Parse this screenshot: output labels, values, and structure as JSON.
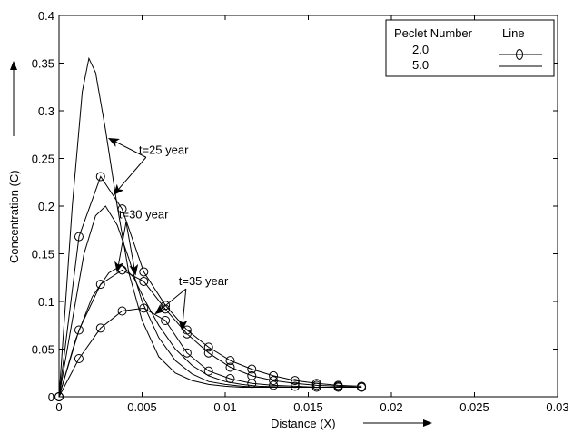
{
  "chart_data": {
    "type": "line",
    "title": "",
    "xlabel": "Distance (X)",
    "ylabel": "Concentration (C)",
    "xlim": [
      0,
      0.03
    ],
    "ylim": [
      0,
      0.4
    ],
    "x_ticks": [
      0,
      0.005,
      0.01,
      0.015,
      0.02,
      0.025,
      0.03
    ],
    "x_tick_labels": [
      "0",
      "0.005",
      "0.01",
      "0.015",
      "0.02",
      "0.025",
      "0.03"
    ],
    "y_ticks": [
      0,
      0.05,
      0.1,
      0.15,
      0.2,
      0.25,
      0.3,
      0.35,
      0.4
    ],
    "y_tick_labels": [
      "0",
      "0.05",
      "0.1",
      "0.15",
      "0.2",
      "0.25",
      "0.3",
      "0.35",
      "0.4"
    ],
    "grid": false,
    "legend": {
      "placement": "top-right",
      "header_left": "Peclet Number",
      "header_right": "Line",
      "entries": [
        {
          "label": "2.0",
          "marker": "circle"
        },
        {
          "label": "5.0",
          "marker": "none"
        }
      ]
    },
    "series": [
      {
        "peclet": "2.0",
        "marker": "circle",
        "x": [
          0,
          0.0012,
          0.0025,
          0.0038,
          0.0051,
          0.0064,
          0.0077,
          0.009,
          0.0103,
          0.0116,
          0.0129,
          0.0142,
          0.0155,
          0.0168,
          0.0182
        ],
        "y": [
          0,
          0.168,
          0.231,
          0.197,
          0.131,
          0.096,
          0.07,
          0.052,
          0.038,
          0.029,
          0.022,
          0.017,
          0.014,
          0.012,
          0.011
        ]
      },
      {
        "peclet": "2.0",
        "marker": "circle",
        "x": [
          0,
          0.0012,
          0.0025,
          0.0038,
          0.0051,
          0.0064,
          0.0077,
          0.009,
          0.0103,
          0.0116,
          0.0129,
          0.0142,
          0.0155,
          0.0168,
          0.0182
        ],
        "y": [
          0,
          0.07,
          0.118,
          0.133,
          0.121,
          0.092,
          0.066,
          0.046,
          0.031,
          0.022,
          0.017,
          0.014,
          0.012,
          0.011,
          0.01
        ]
      },
      {
        "peclet": "2.0",
        "marker": "circle",
        "x": [
          0,
          0.0012,
          0.0025,
          0.0038,
          0.0051,
          0.0064,
          0.0077,
          0.009,
          0.0103,
          0.0116,
          0.0129,
          0.0142,
          0.0155,
          0.0168,
          0.0182
        ],
        "y": [
          0,
          0.04,
          0.072,
          0.09,
          0.093,
          0.08,
          0.046,
          0.027,
          0.019,
          0.014,
          0.012,
          0.011,
          0.01,
          0.01,
          0.01
        ]
      },
      {
        "peclet": "5.0",
        "marker": "none",
        "x": [
          0,
          0.0008,
          0.0014,
          0.0018,
          0.0022,
          0.0028,
          0.0035,
          0.0042,
          0.005,
          0.006,
          0.007,
          0.008,
          0.009,
          0.01,
          0.011,
          0.012,
          0.014,
          0.016,
          0.0182
        ],
        "y": [
          0,
          0.2,
          0.32,
          0.355,
          0.34,
          0.28,
          0.2,
          0.13,
          0.08,
          0.042,
          0.025,
          0.017,
          0.013,
          0.011,
          0.01,
          0.01,
          0.01,
          0.01,
          0.01
        ]
      },
      {
        "peclet": "5.0",
        "marker": "none",
        "x": [
          0,
          0.0008,
          0.0015,
          0.0022,
          0.0028,
          0.0035,
          0.0042,
          0.005,
          0.006,
          0.007,
          0.008,
          0.009,
          0.01,
          0.011,
          0.012,
          0.014,
          0.016,
          0.0182
        ],
        "y": [
          0,
          0.08,
          0.15,
          0.19,
          0.2,
          0.18,
          0.145,
          0.1,
          0.062,
          0.038,
          0.024,
          0.016,
          0.013,
          0.011,
          0.01,
          0.01,
          0.01,
          0.01
        ]
      },
      {
        "peclet": "5.0",
        "marker": "none",
        "x": [
          0,
          0.001,
          0.002,
          0.003,
          0.0038,
          0.0045,
          0.0052,
          0.006,
          0.007,
          0.008,
          0.009,
          0.01,
          0.011,
          0.012,
          0.014,
          0.016,
          0.0182
        ],
        "y": [
          0,
          0.06,
          0.105,
          0.13,
          0.138,
          0.125,
          0.1,
          0.075,
          0.05,
          0.033,
          0.022,
          0.016,
          0.013,
          0.011,
          0.01,
          0.01,
          0.01
        ]
      }
    ],
    "annotations": [
      {
        "text": "t=25 year",
        "x": 0.0048,
        "y": 0.255,
        "arrows_to": [
          [
            0.003,
            0.271
          ],
          [
            0.0033,
            0.212
          ]
        ]
      },
      {
        "text": "t=30 year",
        "x": 0.0036,
        "y": 0.187,
        "arrows_to": [
          [
            0.0035,
            0.131
          ],
          [
            0.0046,
            0.128
          ]
        ]
      },
      {
        "text": "t=35 year",
        "x": 0.0072,
        "y": 0.117,
        "arrows_to": [
          [
            0.0058,
            0.087
          ],
          [
            0.0074,
            0.07
          ]
        ]
      }
    ]
  },
  "axes_arrows": {
    "x": "right",
    "y": "up"
  }
}
